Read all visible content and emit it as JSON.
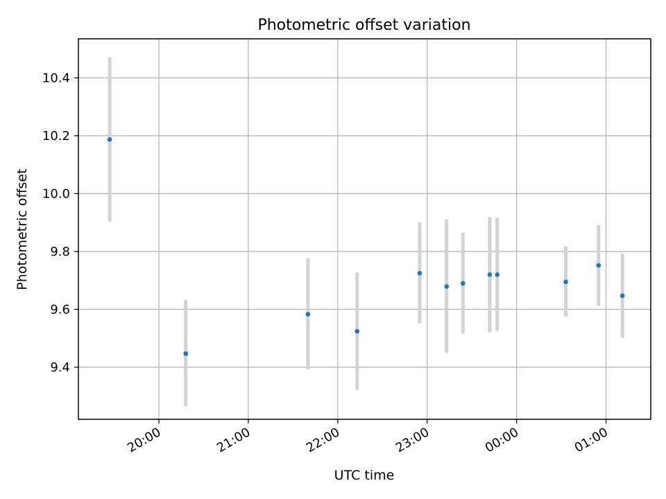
{
  "chart_data": {
    "type": "scatter",
    "title": "Photometric offset variation",
    "xlabel": "UTC time",
    "ylabel": "Photometric offset",
    "x_is_time": true,
    "xlim": [
      "19:06",
      "01:30"
    ],
    "ylim": [
      9.22,
      10.535
    ],
    "xticks": [
      "20:00",
      "21:00",
      "22:00",
      "23:00",
      "00:00",
      "01:00"
    ],
    "yticks": [
      9.4,
      9.6,
      9.8,
      10.0,
      10.2,
      10.4
    ],
    "ytick_labels": [
      "9.4",
      "9.6",
      "9.8",
      "10.0",
      "10.2",
      "10.4"
    ],
    "grid": true,
    "marker_color": "#1f77b4",
    "errorbar_color": "#d3d3d3",
    "points": [
      {
        "x": "19:27",
        "y": 10.187,
        "ylow": 9.903,
        "yhigh": 10.472
      },
      {
        "x": "20:18",
        "y": 9.447,
        "ylow": 9.265,
        "yhigh": 9.633
      },
      {
        "x": "21:40",
        "y": 9.583,
        "ylow": 9.393,
        "yhigh": 9.777
      },
      {
        "x": "22:13",
        "y": 9.524,
        "ylow": 9.322,
        "yhigh": 9.727
      },
      {
        "x": "22:55",
        "y": 9.725,
        "ylow": 9.551,
        "yhigh": 9.901
      },
      {
        "x": "23:13",
        "y": 9.679,
        "ylow": 9.449,
        "yhigh": 9.911
      },
      {
        "x": "23:24",
        "y": 9.69,
        "ylow": 9.516,
        "yhigh": 9.865
      },
      {
        "x": "23:42",
        "y": 9.72,
        "ylow": 9.521,
        "yhigh": 9.919
      },
      {
        "x": "23:47",
        "y": 9.72,
        "ylow": 9.525,
        "yhigh": 9.917
      },
      {
        "x": "00:33",
        "y": 9.695,
        "ylow": 9.576,
        "yhigh": 9.817
      },
      {
        "x": "00:55",
        "y": 9.752,
        "ylow": 9.612,
        "yhigh": 9.891
      },
      {
        "x": "01:11",
        "y": 9.647,
        "ylow": 9.501,
        "yhigh": 9.793
      }
    ]
  }
}
